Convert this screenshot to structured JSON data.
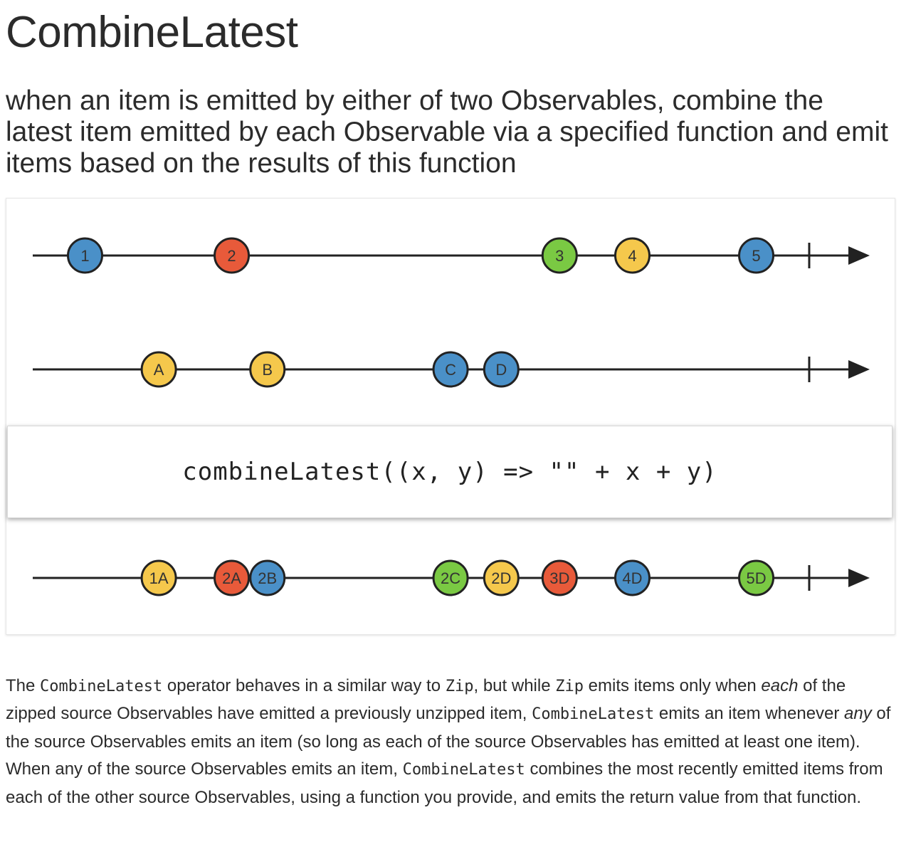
{
  "page": {
    "title": "CombineLatest",
    "subtitle": "when an item is emitted by either of two Observables, combine the latest item emitted by each Observable via a specified function and emit items based on the results of this function"
  },
  "diagram": {
    "operator_label": "combineLatest((x, y) => \"\" + x + y)",
    "lines": [
      {
        "id": "source-1",
        "marbles": [
          {
            "label": "1",
            "color": "#4a90c8",
            "t": 0.0625
          },
          {
            "label": "2",
            "color": "#e85a3a",
            "t": 0.2377
          },
          {
            "label": "3",
            "color": "#7ac943",
            "t": 0.6295
          },
          {
            "label": "4",
            "color": "#f5c84c",
            "t": 0.7164
          },
          {
            "label": "5",
            "color": "#4a90c8",
            "t": 0.8644
          }
        ],
        "complete_t": 0.9277
      },
      {
        "id": "source-2",
        "marbles": [
          {
            "label": "A",
            "color": "#f5c84c",
            "t": 0.1506
          },
          {
            "label": "B",
            "color": "#f5c84c",
            "t": 0.2804
          },
          {
            "label": "C",
            "color": "#4a90c8",
            "t": 0.4992
          },
          {
            "label": "D",
            "color": "#4a90c8",
            "t": 0.5598
          }
        ],
        "complete_t": 0.9277
      },
      {
        "id": "output",
        "marbles": [
          {
            "label": "1A",
            "color": "#f5c84c",
            "t": 0.1506
          },
          {
            "label": "2A",
            "color": "#e85a3a",
            "t": 0.2377
          },
          {
            "label": "2B",
            "color": "#4a90c8",
            "t": 0.2804
          },
          {
            "label": "2C",
            "color": "#7ac943",
            "t": 0.4992
          },
          {
            "label": "2D",
            "color": "#f5c84c",
            "t": 0.5598
          },
          {
            "label": "3D",
            "color": "#e85a3a",
            "t": 0.6295
          },
          {
            "label": "4D",
            "color": "#4a90c8",
            "t": 0.7164
          },
          {
            "label": "5D",
            "color": "#7ac943",
            "t": 0.8644
          }
        ],
        "complete_t": 0.9277
      }
    ]
  },
  "description": {
    "s1": "The ",
    "c1": "CombineLatest",
    "s2": " operator behaves in a similar way to ",
    "c2": "Zip",
    "s3": ", but while ",
    "c3": "Zip",
    "s4": " emits items only when ",
    "e1": "each",
    "s5": " of the zipped source Observables have emitted a previously unzipped item, ",
    "c4": "CombineLatest",
    "s6": " emits an item whenever ",
    "e2": "any",
    "s7": " of the source Observables emits an item (so long as each of the source Observables has emitted at least one item). When any of the source Observables emits an item, ",
    "c5": "CombineLatest",
    "s8": " combines the most recently emitted items from each of the other source Observables, using a function you provide, and emits the return value from that function."
  }
}
